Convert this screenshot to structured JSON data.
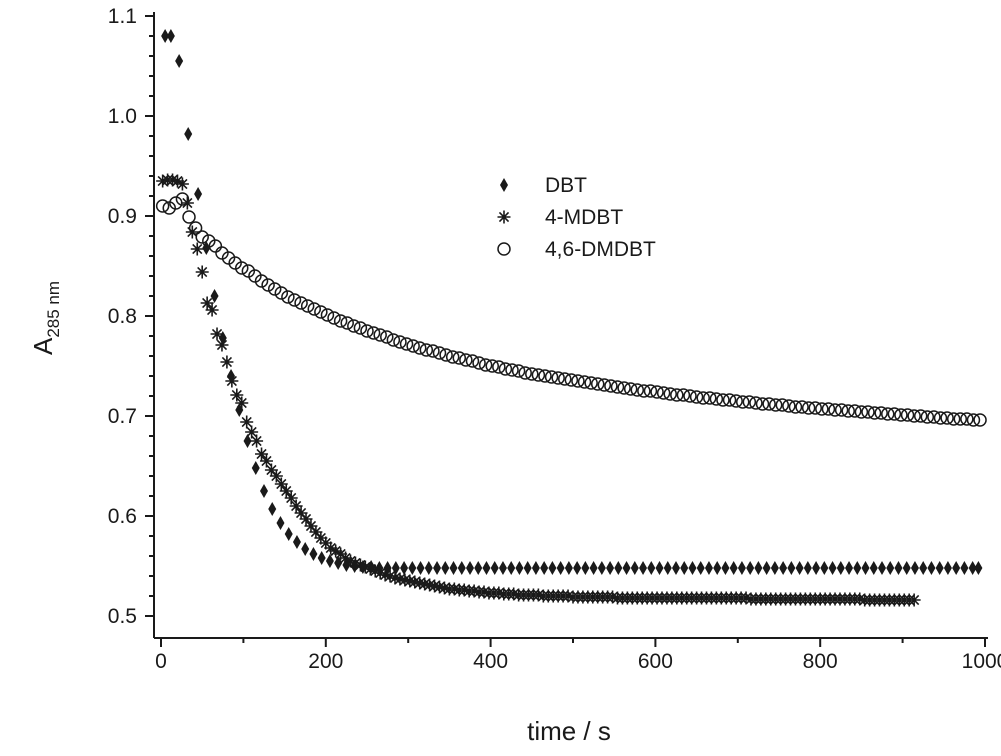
{
  "chart_data": {
    "type": "scatter",
    "xlabel": "time / s",
    "ylabel": {
      "main": "A",
      "subscript": "285 nm"
    },
    "xlim": [
      0,
      1000
    ],
    "ylim": [
      0.5,
      1.1
    ],
    "xticks": [
      0,
      200,
      400,
      600,
      800,
      1000
    ],
    "xtick_labels": [
      "0",
      "200",
      "400",
      "600",
      "800",
      "1000"
    ],
    "yticks": [
      0.5,
      0.6,
      0.7,
      0.8,
      0.9,
      1.0,
      1.1
    ],
    "ytick_labels": [
      "0.5",
      "0.6",
      "0.7",
      "0.8",
      "0.9",
      "1.0",
      "1.1"
    ],
    "grid": false,
    "legend_position": "top-center",
    "series": [
      {
        "name": "DBT",
        "marker": "diamond-filled",
        "color": "#1a1a1a",
        "x": [
          5,
          12,
          22,
          33,
          45,
          55,
          65,
          75,
          85,
          95,
          105,
          115,
          125,
          135,
          145,
          155,
          165,
          175,
          185,
          195,
          205,
          215,
          225,
          235,
          245,
          255,
          265,
          275,
          285,
          295,
          305,
          315,
          325,
          335,
          345,
          355,
          365,
          375,
          385,
          395,
          405,
          415,
          425,
          435,
          445,
          455,
          465,
          475,
          485,
          495,
          505,
          515,
          525,
          535,
          545,
          555,
          565,
          575,
          585,
          595,
          605,
          615,
          625,
          635,
          645,
          655,
          665,
          675,
          685,
          695,
          705,
          715,
          725,
          735,
          745,
          755,
          765,
          775,
          785,
          795,
          805,
          815,
          825,
          835,
          845,
          855,
          865,
          875,
          885,
          895,
          905,
          915,
          925,
          935,
          945,
          955,
          965,
          975,
          985,
          992
        ],
        "y": [
          1.08,
          1.08,
          1.055,
          0.982,
          0.922,
          0.868,
          0.82,
          0.778,
          0.74,
          0.706,
          0.675,
          0.648,
          0.625,
          0.607,
          0.593,
          0.582,
          0.574,
          0.567,
          0.562,
          0.558,
          0.555,
          0.553,
          0.551,
          0.55,
          0.549,
          0.549,
          0.548,
          0.548,
          0.548,
          0.548,
          0.548,
          0.548,
          0.548,
          0.548,
          0.548,
          0.548,
          0.548,
          0.548,
          0.548,
          0.548,
          0.548,
          0.548,
          0.548,
          0.548,
          0.548,
          0.548,
          0.548,
          0.548,
          0.548,
          0.548,
          0.548,
          0.548,
          0.548,
          0.548,
          0.548,
          0.548,
          0.548,
          0.548,
          0.548,
          0.548,
          0.548,
          0.548,
          0.548,
          0.548,
          0.548,
          0.548,
          0.548,
          0.548,
          0.548,
          0.548,
          0.548,
          0.548,
          0.548,
          0.548,
          0.548,
          0.548,
          0.548,
          0.548,
          0.548,
          0.548,
          0.548,
          0.548,
          0.548,
          0.548,
          0.548,
          0.548,
          0.548,
          0.548,
          0.548,
          0.548,
          0.548,
          0.548,
          0.548,
          0.548,
          0.548,
          0.548,
          0.548,
          0.548,
          0.548,
          0.548
        ]
      },
      {
        "name": "4-MDBT",
        "marker": "asterisk",
        "color": "#1a1a1a",
        "x": [
          2,
          8,
          14,
          20,
          26,
          32,
          38,
          44,
          50,
          56,
          62,
          68,
          74,
          80,
          86,
          92,
          98,
          104,
          110,
          116,
          122,
          128,
          134,
          140,
          146,
          152,
          158,
          164,
          170,
          176,
          182,
          188,
          194,
          200,
          206,
          212,
          218,
          224,
          230,
          236,
          242,
          248,
          254,
          260,
          266,
          272,
          278,
          284,
          290,
          296,
          302,
          308,
          314,
          320,
          326,
          332,
          338,
          344,
          350,
          356,
          362,
          368,
          374,
          380,
          386,
          392,
          398,
          404,
          410,
          416,
          422,
          428,
          434,
          440,
          446,
          452,
          458,
          464,
          470,
          476,
          482,
          488,
          494,
          500,
          506,
          512,
          518,
          524,
          530,
          536,
          542,
          548,
          554,
          560,
          566,
          572,
          578,
          584,
          590,
          596,
          602,
          608,
          614,
          620,
          626,
          632,
          638,
          644,
          650,
          656,
          662,
          668,
          674,
          680,
          686,
          692,
          698,
          704,
          710,
          716,
          722,
          728,
          734,
          740,
          746,
          752,
          758,
          764,
          770,
          776,
          782,
          788,
          794,
          800,
          806,
          812,
          818,
          824,
          830,
          836,
          842,
          848,
          854,
          860,
          866,
          872,
          878,
          884,
          890,
          896,
          902,
          908,
          914
        ],
        "y": [
          0.935,
          0.936,
          0.936,
          0.935,
          0.932,
          0.913,
          0.884,
          0.867,
          0.844,
          0.813,
          0.806,
          0.782,
          0.771,
          0.754,
          0.735,
          0.721,
          0.713,
          0.694,
          0.684,
          0.675,
          0.662,
          0.655,
          0.646,
          0.64,
          0.632,
          0.625,
          0.618,
          0.61,
          0.603,
          0.597,
          0.59,
          0.584,
          0.578,
          0.573,
          0.568,
          0.565,
          0.562,
          0.558,
          0.555,
          0.553,
          0.551,
          0.549,
          0.547,
          0.545,
          0.543,
          0.541,
          0.54,
          0.538,
          0.537,
          0.536,
          0.535,
          0.534,
          0.533,
          0.532,
          0.531,
          0.53,
          0.529,
          0.528,
          0.527,
          0.527,
          0.526,
          0.526,
          0.525,
          0.525,
          0.524,
          0.524,
          0.523,
          0.523,
          0.523,
          0.522,
          0.522,
          0.522,
          0.521,
          0.521,
          0.521,
          0.521,
          0.521,
          0.52,
          0.52,
          0.52,
          0.52,
          0.52,
          0.52,
          0.519,
          0.519,
          0.519,
          0.519,
          0.519,
          0.519,
          0.519,
          0.519,
          0.519,
          0.518,
          0.518,
          0.518,
          0.518,
          0.518,
          0.518,
          0.518,
          0.518,
          0.518,
          0.518,
          0.518,
          0.518,
          0.518,
          0.518,
          0.518,
          0.518,
          0.518,
          0.518,
          0.518,
          0.518,
          0.518,
          0.518,
          0.518,
          0.518,
          0.518,
          0.518,
          0.518,
          0.517,
          0.517,
          0.517,
          0.517,
          0.517,
          0.517,
          0.517,
          0.517,
          0.517,
          0.517,
          0.517,
          0.517,
          0.517,
          0.517,
          0.517,
          0.517,
          0.517,
          0.517,
          0.517,
          0.517,
          0.517,
          0.517,
          0.517,
          0.516,
          0.516,
          0.516,
          0.516,
          0.516,
          0.516,
          0.516,
          0.516,
          0.516,
          0.516,
          0.516
        ]
      },
      {
        "name": "4,6-DMDBT",
        "marker": "circle-open",
        "color": "#1a1a1a",
        "x": [
          2,
          10,
          18,
          26,
          34,
          42,
          50,
          58,
          66,
          74,
          82,
          90,
          98,
          106,
          114,
          122,
          130,
          138,
          146,
          154,
          162,
          170,
          178,
          186,
          194,
          202,
          210,
          218,
          226,
          234,
          242,
          250,
          258,
          266,
          274,
          282,
          290,
          298,
          306,
          314,
          322,
          330,
          338,
          346,
          354,
          362,
          370,
          378,
          386,
          394,
          402,
          410,
          418,
          426,
          434,
          442,
          450,
          458,
          466,
          474,
          482,
          490,
          498,
          506,
          514,
          522,
          530,
          538,
          546,
          554,
          562,
          570,
          578,
          586,
          594,
          602,
          610,
          618,
          626,
          634,
          642,
          650,
          658,
          666,
          674,
          682,
          690,
          698,
          706,
          714,
          722,
          730,
          738,
          746,
          754,
          762,
          770,
          778,
          786,
          794,
          802,
          810,
          818,
          826,
          834,
          842,
          850,
          858,
          866,
          874,
          882,
          890,
          898,
          906,
          914,
          922,
          930,
          938,
          946,
          954,
          962,
          970,
          978,
          986,
          994
        ],
        "y": [
          0.91,
          0.908,
          0.913,
          0.917,
          0.899,
          0.888,
          0.879,
          0.875,
          0.87,
          0.863,
          0.858,
          0.853,
          0.848,
          0.845,
          0.84,
          0.835,
          0.831,
          0.827,
          0.823,
          0.819,
          0.816,
          0.813,
          0.81,
          0.807,
          0.804,
          0.801,
          0.798,
          0.795,
          0.793,
          0.79,
          0.788,
          0.785,
          0.783,
          0.781,
          0.779,
          0.776,
          0.774,
          0.772,
          0.77,
          0.768,
          0.766,
          0.765,
          0.763,
          0.761,
          0.759,
          0.758,
          0.756,
          0.755,
          0.753,
          0.751,
          0.75,
          0.749,
          0.747,
          0.746,
          0.745,
          0.743,
          0.742,
          0.741,
          0.74,
          0.739,
          0.738,
          0.737,
          0.736,
          0.735,
          0.734,
          0.733,
          0.732,
          0.731,
          0.73,
          0.729,
          0.728,
          0.727,
          0.726,
          0.725,
          0.725,
          0.724,
          0.723,
          0.722,
          0.721,
          0.721,
          0.72,
          0.719,
          0.718,
          0.718,
          0.717,
          0.716,
          0.716,
          0.715,
          0.714,
          0.714,
          0.713,
          0.712,
          0.712,
          0.711,
          0.711,
          0.71,
          0.709,
          0.709,
          0.708,
          0.708,
          0.707,
          0.707,
          0.706,
          0.706,
          0.705,
          0.705,
          0.704,
          0.704,
          0.703,
          0.703,
          0.702,
          0.702,
          0.701,
          0.701,
          0.7,
          0.7,
          0.699,
          0.699,
          0.698,
          0.698,
          0.697,
          0.697,
          0.697,
          0.696,
          0.696
        ]
      }
    ]
  }
}
